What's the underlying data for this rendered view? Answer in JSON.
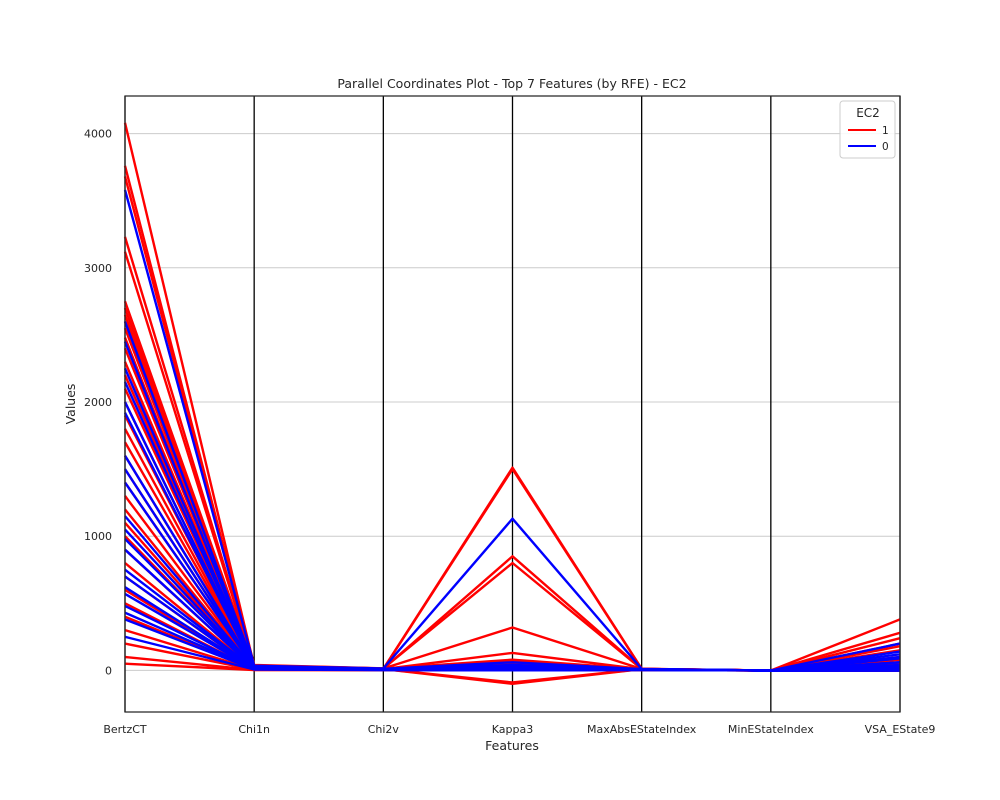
{
  "chart_data": {
    "type": "parallel-coordinates",
    "title": "Parallel Coordinates Plot - Top 7 Features (by RFE) - EC2",
    "xlabel": "Features",
    "ylabel": "Values",
    "categories": [
      "BertzCT",
      "Chi1n",
      "Chi2v",
      "Kappa3",
      "MaxAbsEStateIndex",
      "MinEStateIndex",
      "VSA_EState9"
    ],
    "ylim": [
      -310,
      4280
    ],
    "yticks": [
      0,
      1000,
      2000,
      3000,
      4000
    ],
    "grid": true,
    "legend": {
      "title": "EC2",
      "placement": "top-right",
      "entries": [
        {
          "label": "1",
          "color": "#ff0000"
        },
        {
          "label": "0",
          "color": "#0000ff"
        }
      ]
    },
    "series": [
      {
        "name": "1",
        "color": "#ff0000",
        "lines": [
          [
            4080,
            30,
            10,
            30,
            10,
            -2,
            60
          ],
          [
            3760,
            35,
            12,
            40,
            11,
            -1,
            80
          ],
          [
            3680,
            40,
            15,
            50,
            12,
            -1,
            100
          ],
          [
            3230,
            38,
            14,
            320,
            11,
            -2,
            180
          ],
          [
            3120,
            32,
            12,
            60,
            10,
            -1,
            50
          ],
          [
            2750,
            34,
            13,
            80,
            10,
            -1,
            40
          ],
          [
            2700,
            30,
            12,
            850,
            11,
            -1,
            280
          ],
          [
            2650,
            36,
            14,
            800,
            10,
            -2,
            240
          ],
          [
            2600,
            28,
            11,
            1510,
            12,
            -1,
            380
          ],
          [
            2550,
            30,
            10,
            1500,
            11,
            -1,
            200
          ],
          [
            2480,
            26,
            10,
            130,
            9,
            -1,
            150
          ],
          [
            2400,
            29,
            11,
            70,
            10,
            -1,
            90
          ],
          [
            2300,
            27,
            10,
            -100,
            9,
            -1,
            60
          ],
          [
            2200,
            25,
            10,
            -90,
            10,
            -1,
            30
          ],
          [
            2100,
            24,
            9,
            20,
            9,
            -1,
            20
          ],
          [
            2000,
            23,
            9,
            30,
            8,
            -1,
            10
          ],
          [
            1900,
            22,
            9,
            40,
            9,
            -1,
            0
          ],
          [
            1800,
            21,
            8,
            25,
            8,
            -1,
            50
          ],
          [
            1700,
            20,
            8,
            15,
            8,
            -1,
            20
          ],
          [
            1600,
            19,
            8,
            20,
            8,
            -1,
            10
          ],
          [
            1500,
            18,
            7,
            10,
            7,
            -1,
            0
          ],
          [
            1400,
            17,
            7,
            12,
            7,
            -1,
            30
          ],
          [
            1300,
            16,
            7,
            10,
            7,
            0,
            0
          ],
          [
            1200,
            15,
            6,
            8,
            7,
            0,
            10
          ],
          [
            1100,
            14,
            6,
            6,
            6,
            0,
            0
          ],
          [
            1000,
            13,
            6,
            5,
            6,
            0,
            20
          ],
          [
            900,
            12,
            5,
            4,
            6,
            0,
            0
          ],
          [
            800,
            11,
            5,
            3,
            5,
            0,
            10
          ],
          [
            700,
            10,
            5,
            3,
            5,
            0,
            0
          ],
          [
            600,
            9,
            4,
            2,
            5,
            0,
            0
          ],
          [
            500,
            8,
            4,
            2,
            4,
            0,
            0
          ],
          [
            400,
            7,
            4,
            2,
            4,
            0,
            0
          ],
          [
            300,
            6,
            3,
            1,
            4,
            0,
            0
          ],
          [
            200,
            5,
            3,
            1,
            3,
            0,
            0
          ],
          [
            100,
            4,
            2,
            1,
            3,
            0,
            0
          ],
          [
            50,
            3,
            2,
            1,
            2,
            0,
            0
          ]
        ]
      },
      {
        "name": "0",
        "color": "#0000ff",
        "lines": [
          [
            3580,
            35,
            14,
            1130,
            11,
            -1,
            120
          ],
          [
            2600,
            30,
            12,
            60,
            10,
            -1,
            90
          ],
          [
            2450,
            28,
            11,
            40,
            9,
            -1,
            140
          ],
          [
            2250,
            26,
            10,
            30,
            9,
            -1,
            200
          ],
          [
            2150,
            25,
            10,
            20,
            8,
            -1,
            100
          ],
          [
            2000,
            24,
            9,
            15,
            8,
            -1,
            60
          ],
          [
            1920,
            23,
            9,
            12,
            8,
            -1,
            90
          ],
          [
            1600,
            22,
            9,
            10,
            8,
            -1,
            40
          ],
          [
            1500,
            20,
            8,
            8,
            7,
            -1,
            30
          ],
          [
            1400,
            19,
            8,
            7,
            7,
            -1,
            20
          ],
          [
            1150,
            17,
            7,
            6,
            7,
            -1,
            10
          ],
          [
            1050,
            16,
            7,
            5,
            6,
            -1,
            60
          ],
          [
            980,
            15,
            7,
            4,
            6,
            -1,
            0
          ],
          [
            900,
            15,
            6,
            4,
            6,
            -1,
            10
          ],
          [
            750,
            14,
            6,
            3,
            6,
            -1,
            0
          ],
          [
            700,
            13,
            6,
            3,
            5,
            -1,
            20
          ],
          [
            620,
            12,
            5,
            3,
            5,
            0,
            0
          ],
          [
            570,
            11,
            5,
            2,
            5,
            0,
            10
          ],
          [
            480,
            10,
            5,
            2,
            5,
            0,
            0
          ],
          [
            430,
            9,
            4,
            2,
            4,
            0,
            0
          ],
          [
            380,
            8,
            4,
            1,
            4,
            0,
            0
          ],
          [
            250,
            7,
            3,
            1,
            3,
            0,
            0
          ]
        ]
      }
    ]
  }
}
